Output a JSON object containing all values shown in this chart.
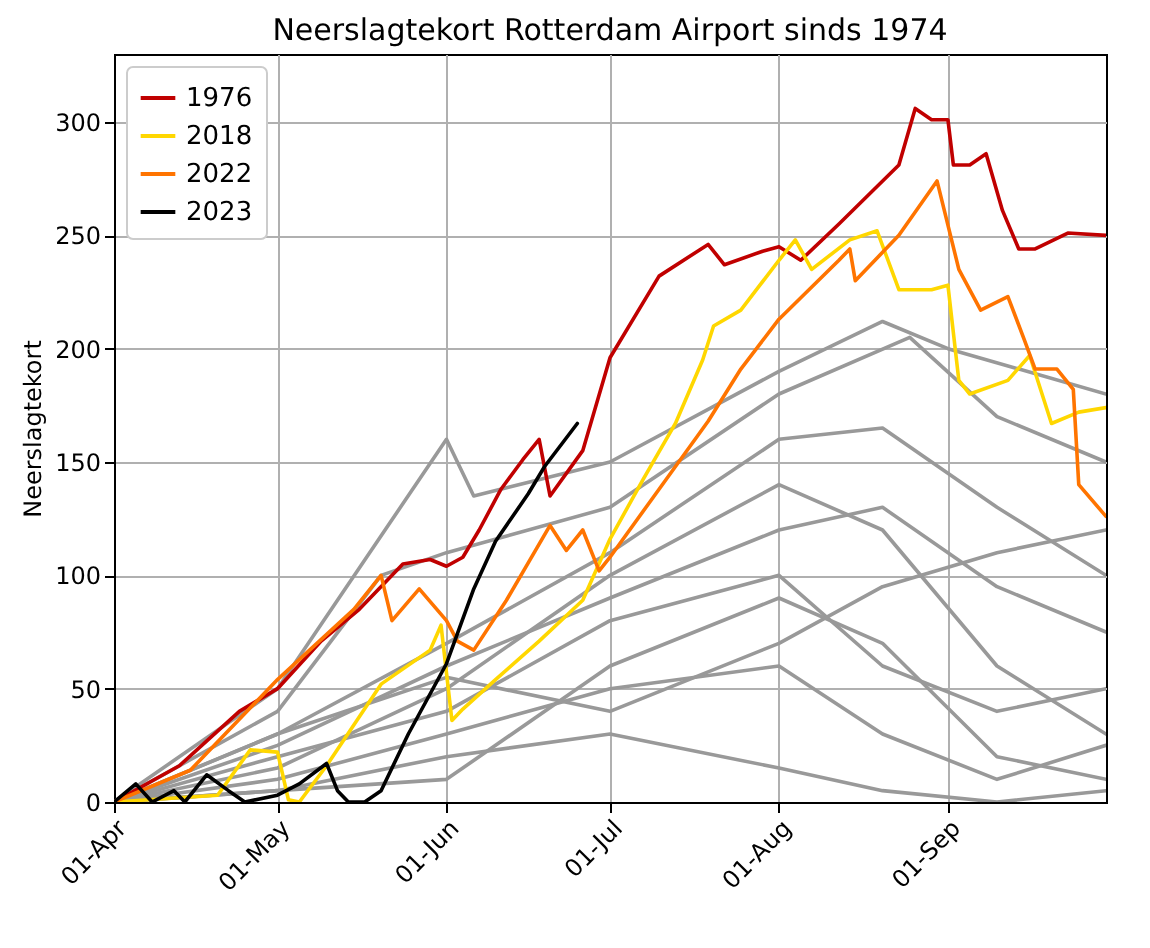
{
  "chart_data": {
    "type": "line",
    "title": "Neerslagtekort Rotterdam Airport sinds 1974",
    "ylabel": "Neerslagtekort",
    "xlim": [
      "--04-01",
      "--09-30"
    ],
    "ylim": [
      0,
      330
    ],
    "yticks": [
      0,
      50,
      100,
      150,
      200,
      250,
      300
    ],
    "xticks": [
      {
        "value": "--04-01",
        "label": "01-Apr"
      },
      {
        "value": "--05-01",
        "label": "01-May"
      },
      {
        "value": "--06-01",
        "label": "01-Jun"
      },
      {
        "value": "--07-01",
        "label": "01-Jul"
      },
      {
        "value": "--08-01",
        "label": "01-Aug"
      },
      {
        "value": "--09-01",
        "label": "01-Sep"
      }
    ],
    "grid": true,
    "legend": "top left",
    "series": [
      {
        "color": "#999999",
        "x": [
          "--04-01",
          "--05-01",
          "--06-01",
          "--06-06",
          "--07-01",
          "--08-01",
          "--08-20",
          "--09-01",
          "--09-30"
        ],
        "values": [
          0,
          50,
          160,
          135,
          150,
          190,
          212,
          200,
          180
        ]
      },
      {
        "color": "#999999",
        "x": [
          "--04-01",
          "--05-01",
          "--05-20",
          "--06-01",
          "--07-01",
          "--08-01",
          "--08-25",
          "--09-10",
          "--09-30"
        ],
        "values": [
          0,
          40,
          100,
          110,
          130,
          180,
          205,
          170,
          150
        ]
      },
      {
        "color": "#999999",
        "x": [
          "--04-01",
          "--05-01",
          "--06-01",
          "--07-01",
          "--08-01",
          "--08-20",
          "--09-10",
          "--09-30"
        ],
        "values": [
          0,
          30,
          70,
          110,
          160,
          165,
          130,
          100
        ]
      },
      {
        "color": "#999999",
        "x": [
          "--04-01",
          "--05-01",
          "--06-01",
          "--07-01",
          "--08-01",
          "--08-20",
          "--09-10",
          "--09-30"
        ],
        "values": [
          0,
          25,
          60,
          90,
          120,
          130,
          95,
          75
        ]
      },
      {
        "color": "#999999",
        "x": [
          "--04-01",
          "--05-01",
          "--06-01",
          "--07-01",
          "--08-01",
          "--08-20",
          "--09-10",
          "--09-30"
        ],
        "values": [
          0,
          20,
          40,
          80,
          100,
          60,
          40,
          50
        ]
      },
      {
        "color": "#999999",
        "x": [
          "--04-01",
          "--05-01",
          "--06-01",
          "--07-01",
          "--08-01",
          "--08-20",
          "--09-10",
          "--09-30"
        ],
        "values": [
          0,
          10,
          30,
          50,
          60,
          30,
          10,
          25
        ]
      },
      {
        "color": "#999999",
        "x": [
          "--04-01",
          "--05-01",
          "--06-01",
          "--07-01",
          "--08-01",
          "--08-20",
          "--09-10",
          "--09-30"
        ],
        "values": [
          0,
          5,
          20,
          30,
          15,
          5,
          0,
          5
        ]
      },
      {
        "color": "#999999",
        "x": [
          "--04-01",
          "--05-01",
          "--06-01",
          "--07-01",
          "--08-01",
          "--08-20",
          "--09-10",
          "--09-30"
        ],
        "values": [
          0,
          15,
          50,
          100,
          140,
          120,
          60,
          30
        ]
      },
      {
        "color": "#999999",
        "x": [
          "--04-01",
          "--05-01",
          "--06-01",
          "--07-01",
          "--08-01",
          "--08-20",
          "--09-10",
          "--09-30"
        ],
        "values": [
          0,
          30,
          55,
          40,
          70,
          95,
          110,
          120
        ]
      },
      {
        "color": "#999999",
        "x": [
          "--04-01",
          "--05-01",
          "--06-01",
          "--07-01",
          "--08-01",
          "--08-20",
          "--09-10",
          "--09-30"
        ],
        "values": [
          0,
          5,
          10,
          60,
          90,
          70,
          20,
          10
        ]
      },
      {
        "name": "1976",
        "color": "#c00000",
        "x": [
          "--04-01",
          "--04-13",
          "--04-24",
          "--05-01",
          "--05-09",
          "--05-16",
          "--05-24",
          "--05-29",
          "--06-01",
          "--06-04",
          "--06-07",
          "--06-11",
          "--06-15",
          "--06-18",
          "--06-20",
          "--06-26",
          "--07-01",
          "--07-10",
          "--07-19",
          "--07-22",
          "--07-29",
          "--08-01",
          "--08-05",
          "--08-12",
          "--08-23",
          "--08-26",
          "--08-29",
          "--09-01",
          "--09-02",
          "--09-05",
          "--09-08",
          "--09-11",
          "--09-14",
          "--09-17",
          "--09-23",
          "--09-30"
        ],
        "values": [
          0,
          16,
          40,
          50,
          71,
          85,
          105,
          107,
          104,
          108,
          120,
          138,
          151,
          160,
          135,
          155,
          196,
          232,
          246,
          237,
          243,
          245,
          239,
          255,
          281,
          306,
          301,
          301,
          281,
          281,
          286,
          261,
          244,
          244,
          251,
          250
        ]
      },
      {
        "name": "2018",
        "color": "#ffd700",
        "x": [
          "--04-01",
          "--04-20",
          "--04-26",
          "--05-01",
          "--05-03",
          "--05-05",
          "--05-10",
          "--05-20",
          "--05-29",
          "--05-31",
          "--06-02",
          "--06-04",
          "--06-10",
          "--06-18",
          "--06-26",
          "--07-01",
          "--07-07",
          "--07-13",
          "--07-18",
          "--07-20",
          "--07-25",
          "--08-01",
          "--08-04",
          "--08-07",
          "--08-14",
          "--08-19",
          "--08-23",
          "--08-29",
          "--09-01",
          "--09-03",
          "--09-05",
          "--09-12",
          "--09-16",
          "--09-20",
          "--09-25",
          "--09-30"
        ],
        "values": [
          0,
          3,
          23,
          22,
          1,
          0,
          16,
          52,
          67,
          78,
          36,
          41,
          54,
          71,
          89,
          116,
          142,
          167,
          195,
          210,
          217,
          239,
          248,
          235,
          248,
          252,
          226,
          226,
          228,
          186,
          180,
          186,
          197,
          167,
          172,
          174
        ]
      },
      {
        "name": "2022",
        "color": "#ff7400",
        "x": [
          "--04-01",
          "--04-15",
          "--05-01",
          "--05-15",
          "--05-20",
          "--05-22",
          "--05-27",
          "--06-01",
          "--06-03",
          "--06-06",
          "--06-12",
          "--06-20",
          "--06-23",
          "--06-26",
          "--06-29",
          "--07-01",
          "--07-10",
          "--07-19",
          "--07-25",
          "--08-01",
          "--08-12",
          "--08-14",
          "--08-15",
          "--08-23",
          "--08-30",
          "--09-03",
          "--09-07",
          "--09-12",
          "--09-15",
          "--09-17",
          "--09-21",
          "--09-24",
          "--09-25",
          "--09-30"
        ],
        "values": [
          0,
          14,
          54,
          85,
          100,
          80,
          94,
          80,
          71,
          67,
          89,
          122,
          111,
          120,
          102,
          108,
          138,
          168,
          191,
          213,
          239,
          244,
          230,
          250,
          274,
          235,
          217,
          223,
          204,
          191,
          191,
          182,
          140,
          126
        ]
      },
      {
        "name": "2023",
        "color": "#000000",
        "x": [
          "--04-01",
          "--04-05",
          "--04-08",
          "--04-12",
          "--04-14",
          "--04-18",
          "--04-22",
          "--04-25",
          "--05-01",
          "--05-05",
          "--05-10",
          "--05-12",
          "--05-14",
          "--05-17",
          "--05-20",
          "--05-25",
          "--06-01",
          "--06-06",
          "--06-10",
          "--06-16",
          "--06-19",
          "--06-25"
        ],
        "values": [
          0,
          8,
          0,
          5,
          0,
          12,
          5,
          0,
          3,
          8,
          17,
          5,
          0,
          0,
          5,
          30,
          61,
          94,
          115,
          136,
          148,
          167
        ]
      }
    ]
  }
}
